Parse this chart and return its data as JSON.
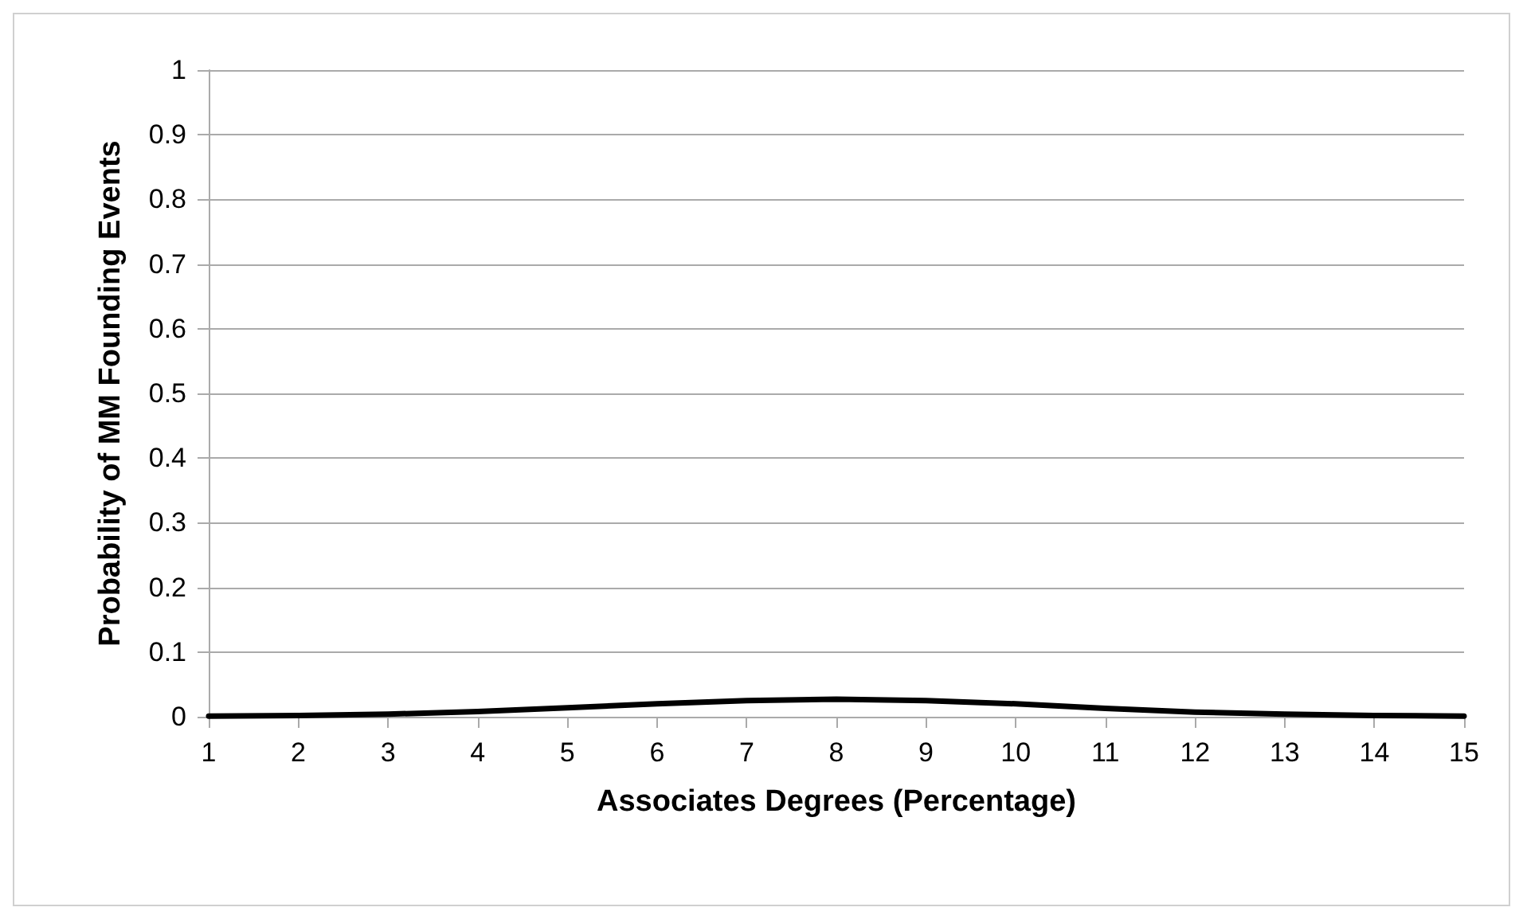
{
  "chart_data": {
    "type": "line",
    "xlabel": "Associates Degrees (Percentage)",
    "ylabel": "Probability of MM Founding Events",
    "x": [
      1,
      2,
      3,
      4,
      5,
      6,
      7,
      8,
      9,
      10,
      11,
      12,
      13,
      14,
      15
    ],
    "series": [
      {
        "color": "#000000",
        "values": [
          0.001,
          0.002,
          0.004,
          0.008,
          0.014,
          0.02,
          0.025,
          0.027,
          0.025,
          0.02,
          0.013,
          0.007,
          0.004,
          0.002,
          0.001
        ]
      }
    ],
    "xlim": [
      1,
      15
    ],
    "xticks": [
      1,
      2,
      3,
      4,
      5,
      6,
      7,
      8,
      9,
      10,
      11,
      12,
      13,
      14,
      15
    ],
    "ylim": [
      0,
      1
    ],
    "yticks": [
      0,
      0.1,
      0.2,
      0.3,
      0.4,
      0.5,
      0.6,
      0.7,
      0.8,
      0.9,
      1
    ],
    "grid": "y",
    "marker": "none",
    "line_style": "solid"
  }
}
